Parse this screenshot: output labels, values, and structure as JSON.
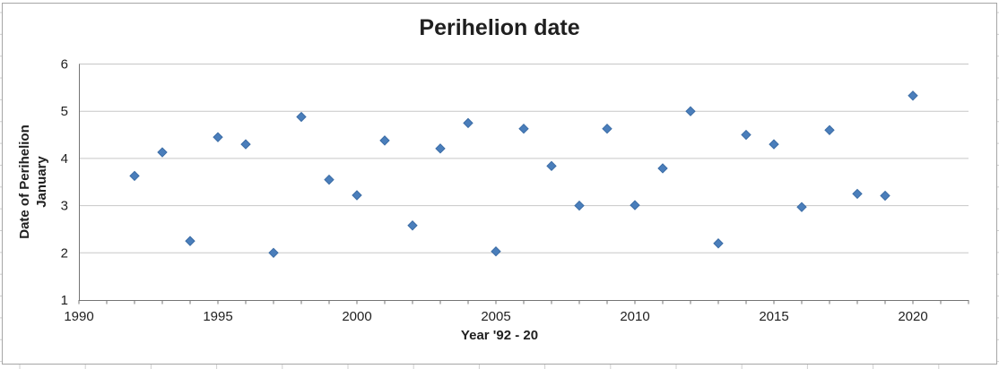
{
  "chart_data": {
    "type": "scatter",
    "title": "Perihelion date",
    "xlabel": "Year '92 - 20",
    "ylabel_lines": [
      "Date of Perihelion",
      "January"
    ],
    "x": [
      1992,
      1993,
      1994,
      1995,
      1996,
      1997,
      1998,
      1999,
      2000,
      2001,
      2002,
      2003,
      2004,
      2005,
      2006,
      2007,
      2008,
      2009,
      2010,
      2011,
      2012,
      2013,
      2014,
      2015,
      2016,
      2017,
      2018,
      2019,
      2020
    ],
    "y": [
      3.63,
      4.13,
      2.25,
      4.45,
      4.3,
      2.0,
      4.88,
      3.55,
      3.22,
      4.38,
      2.58,
      4.21,
      4.75,
      2.03,
      4.63,
      3.84,
      3.0,
      4.63,
      3.01,
      3.79,
      5.0,
      2.2,
      4.5,
      4.3,
      2.97,
      4.6,
      3.25,
      3.21,
      5.33
    ],
    "xlim": [
      1990,
      2022
    ],
    "ylim": [
      1,
      6
    ],
    "xticks_labeled": [
      1990,
      1995,
      2000,
      2005,
      2010,
      2015,
      2020
    ],
    "xtick_minor_step": 1,
    "yticks": [
      1,
      2,
      3,
      4,
      5,
      6
    ],
    "grid": "horizontal",
    "legend": "none",
    "colors": {
      "marker_fill": "#4A7EBB",
      "marker_stroke": "#3B6CA5",
      "gridline": "#C7C7C7",
      "axis": "#757575",
      "tick_text": "#1f1f1f",
      "chart_border": "#A6A6A6",
      "sheet_gridline": "#CFCFCF"
    }
  }
}
